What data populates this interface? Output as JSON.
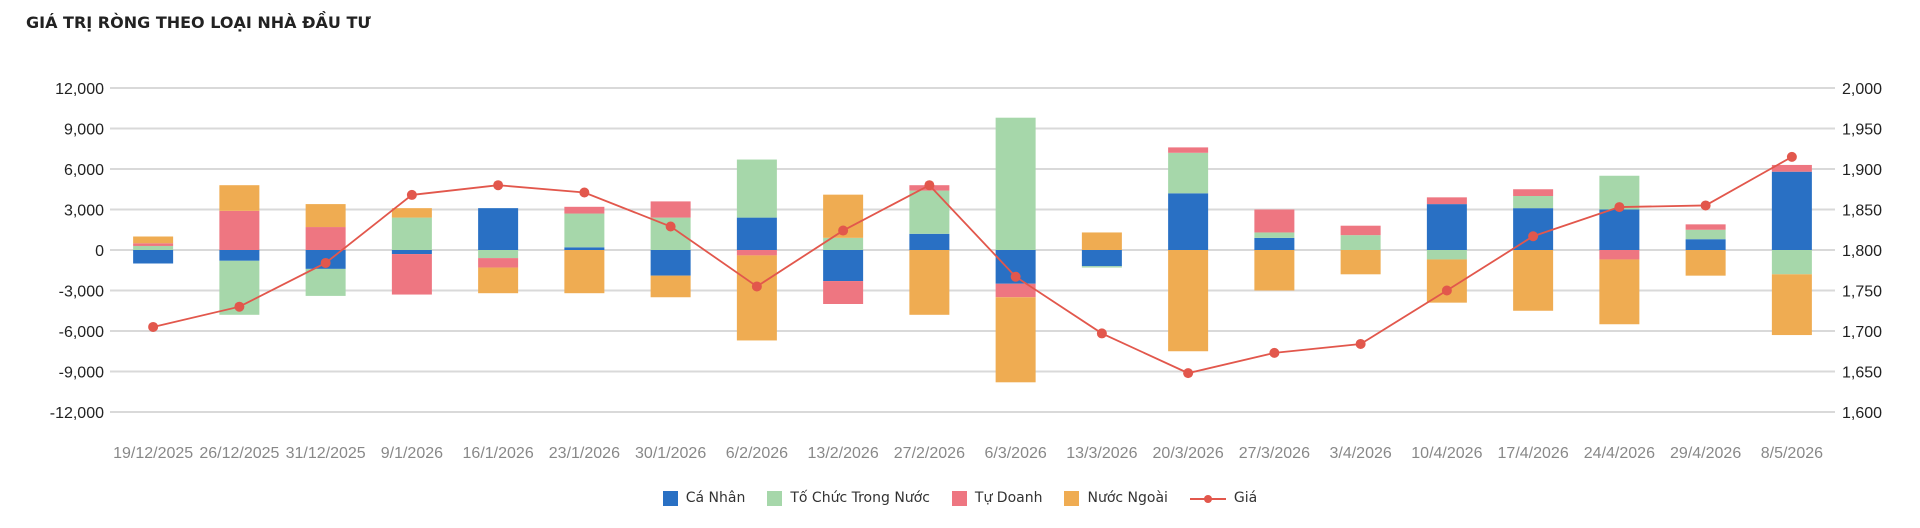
{
  "title": "GIÁ TRỊ RÒNG THEO LOẠI NHÀ ĐẦU TƯ",
  "colors": {
    "ca_nhan": "#2970c4",
    "to_chuc": "#a6d7aa",
    "tu_doanh": "#ee7681",
    "nuoc_ngoai": "#efac52",
    "gia": "#e2574c",
    "grid": "#d9d9d9"
  },
  "chart_data": {
    "type": "bar",
    "stacked": true,
    "categories": [
      "19/12/2025",
      "26/12/2025",
      "31/12/2025",
      "9/1/2026",
      "16/1/2026",
      "23/1/2026",
      "30/1/2026",
      "6/2/2026",
      "13/2/2026",
      "27/2/2026",
      "6/3/2026",
      "13/3/2026",
      "20/3/2026",
      "27/3/2026",
      "3/4/2026",
      "10/4/2026",
      "17/4/2026",
      "24/4/2026",
      "29/4/2026",
      "8/5/2026"
    ],
    "y_left": {
      "ticks": [
        12000,
        9000,
        6000,
        3000,
        0,
        -3000,
        -6000,
        -9000,
        -12000
      ],
      "tick_labels": [
        "12,000",
        "9,000",
        "6,000",
        "3,000",
        "0",
        "-3,000",
        "-6,000",
        "-9,000",
        "-12,000"
      ],
      "range": [
        -12000,
        12000
      ]
    },
    "y_right": {
      "ticks": [
        2000,
        1950,
        1900,
        1850,
        1800,
        1750,
        1700,
        1650,
        1600
      ],
      "tick_labels": [
        "2,000",
        "1,950",
        "1,900",
        "1,850",
        "1,800",
        "1,750",
        "1,700",
        "1,650",
        "1,600"
      ],
      "range": [
        1600,
        2000
      ]
    },
    "grid": true,
    "legend_position": "bottom-center",
    "series": [
      {
        "name": "Cá Nhân",
        "key": "ca_nhan",
        "values": [
          -1000,
          -800,
          -1400,
          -300,
          3100,
          200,
          -1900,
          2400,
          -2300,
          1200,
          -2500,
          -1200,
          4200,
          900,
          0,
          3400,
          3100,
          3000,
          800,
          5800
        ]
      },
      {
        "name": "Tố Chức Trong Nước",
        "key": "to_chuc",
        "values": [
          300,
          -4000,
          -2000,
          2400,
          -600,
          2500,
          2400,
          4300,
          900,
          3200,
          9800,
          -100,
          3000,
          400,
          1100,
          -700,
          900,
          2500,
          700,
          -1800
        ]
      },
      {
        "name": "Tự Doanh",
        "key": "tu_doanh",
        "values": [
          200,
          2900,
          1700,
          -3000,
          -700,
          500,
          1200,
          -400,
          -1700,
          400,
          -1000,
          0,
          400,
          1700,
          700,
          500,
          500,
          -700,
          400,
          500
        ]
      },
      {
        "name": "Nước Ngoài",
        "key": "nuoc_ngoai",
        "values": [
          500,
          1900,
          1700,
          700,
          -1900,
          -3200,
          -1600,
          -6300,
          3200,
          -4800,
          -6300,
          1300,
          -7500,
          -3000,
          -1800,
          -3200,
          -4500,
          -4800,
          -1900,
          -4500
        ]
      }
    ],
    "line": {
      "name": "Giá",
      "key": "gia",
      "axis": "right",
      "values": [
        1705,
        1730,
        1784,
        1868,
        1880,
        1871,
        1829,
        1755,
        1824,
        1880,
        1767,
        1697,
        1648,
        1673,
        1684,
        1750,
        1817,
        1853,
        1855,
        1915
      ]
    }
  }
}
